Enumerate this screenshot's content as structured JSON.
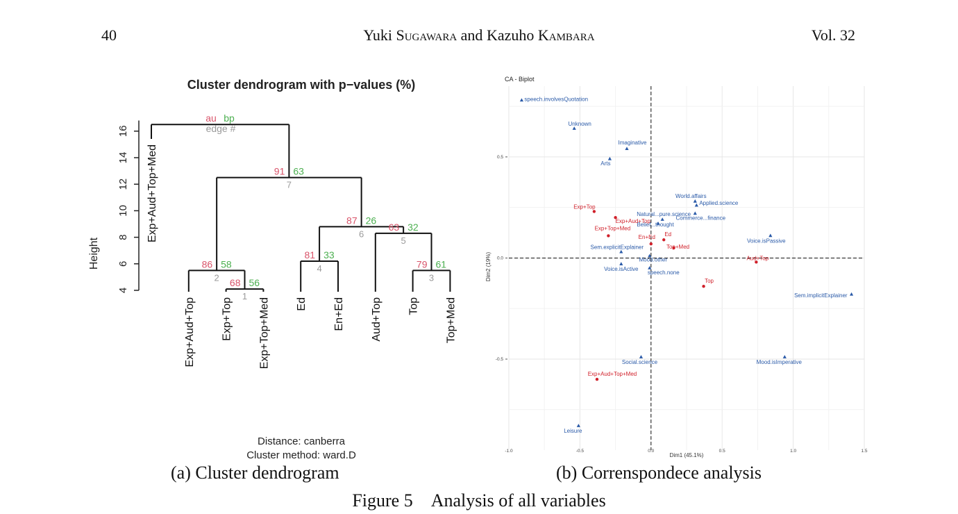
{
  "header": {
    "page_number": "40",
    "author_1_given": "Yuki",
    "author_1_family": "Sugawara",
    "connector": "and",
    "author_2_given": "Kazuho",
    "author_2_family": "Kambara",
    "volume": "Vol. 32"
  },
  "captions": {
    "sub_a": "(a) Cluster dendrogram",
    "sub_b": "(b) Correnspondece analysis",
    "figure": "Figure 5 Analysis of all variables"
  },
  "chart_data": [
    {
      "type": "dendrogram",
      "title": "Cluster dendrogram with p−values (%)",
      "ylabel": "Height",
      "ylim": [
        4,
        17
      ],
      "yticks": [
        "4",
        "6",
        "8",
        "10",
        "12",
        "14",
        "16"
      ],
      "legend": {
        "au": "au",
        "bp": "bp",
        "edge": "edge #"
      },
      "leaves": [
        "Exp+Aud+Top+Med",
        "Exp+Aud+Top",
        "Exp+Top",
        "Exp+Top+Med",
        "Ed",
        "En+Ed",
        "Aud+Top",
        "Top",
        "Top+Med"
      ],
      "merges": [
        {
          "id": "n1",
          "left": "Exp+Top",
          "right": "Exp+Top+Med",
          "height": 4.1,
          "au": "68",
          "bp": "56",
          "edge": "1"
        },
        {
          "id": "n2",
          "left": "Exp+Aud+Top",
          "right": "n1",
          "height": 5.5,
          "au": "86",
          "bp": "58",
          "edge": "2"
        },
        {
          "id": "n3",
          "left": "Top",
          "right": "Top+Med",
          "height": 5.5,
          "au": "79",
          "bp": "61",
          "edge": "3"
        },
        {
          "id": "n4",
          "left": "Ed",
          "right": "En+Ed",
          "height": 6.2,
          "au": "81",
          "bp": "33",
          "edge": "4"
        },
        {
          "id": "n5",
          "left": "Aud+Top",
          "right": "n3",
          "height": 8.3,
          "au": "63",
          "bp": "32",
          "edge": "5"
        },
        {
          "id": "n6",
          "left": "n4",
          "right": "n5",
          "height": 8.8,
          "au": "87",
          "bp": "26",
          "edge": "6"
        },
        {
          "id": "n7",
          "left": "n2",
          "right": "n6",
          "height": 12.5,
          "au": "91",
          "bp": "63",
          "edge": "7"
        },
        {
          "id": "root",
          "left": "Exp+Aud+Top+Med",
          "right": "n7",
          "height": 16.5,
          "au": "",
          "bp": "",
          "edge": ""
        }
      ],
      "footer": [
        "Distance:  canberra",
        "Cluster method: ward.D"
      ],
      "colors": {
        "au": "#d9546a",
        "bp": "#4caf50",
        "edge": "#9a9a9a",
        "line": "#111111"
      }
    },
    {
      "type": "scatter",
      "title": "CA - Biplot",
      "xlabel": "Dim1 (45.1%)",
      "ylabel": "Dim2 (19%)",
      "xlim": [
        -1.0,
        1.5
      ],
      "ylim": [
        -0.95,
        0.85
      ],
      "xticks": [
        "-1.0",
        "-0.5",
        "0.0",
        "0.5",
        "1.0",
        "1.5"
      ],
      "yticks": [
        "-0.5",
        "0.0",
        "0.5"
      ],
      "grid": true,
      "series": [
        {
          "marker": "triangle",
          "color": "#2a5aa8",
          "points": [
            {
              "label": "speech.involvesQuotation",
              "x": -0.91,
              "y": 0.78
            },
            {
              "label": "Unknown",
              "x": -0.54,
              "y": 0.64
            },
            {
              "label": "Imaginative",
              "x": -0.17,
              "y": 0.54
            },
            {
              "label": "Arts",
              "x": -0.29,
              "y": 0.49
            },
            {
              "label": "World.affairs",
              "x": 0.31,
              "y": 0.28
            },
            {
              "label": "Applied.science",
              "x": 0.32,
              "y": 0.26
            },
            {
              "label": "Natural...pure.science",
              "x": 0.08,
              "y": 0.19
            },
            {
              "label": "Belief...thought",
              "x": 0.05,
              "y": 0.17
            },
            {
              "label": "Commerce...finance",
              "x": 0.31,
              "y": 0.22
            },
            {
              "label": "Sem.explicitExplainer",
              "x": -0.21,
              "y": 0.03
            },
            {
              "label": "Voice.isPassive",
              "x": 0.84,
              "y": 0.11
            },
            {
              "label": "Mood.other",
              "x": -0.01,
              "y": 0.01
            },
            {
              "label": "Voice.isActive",
              "x": -0.21,
              "y": -0.03
            },
            {
              "label": "speech.none",
              "x": -0.01,
              "y": -0.05
            },
            {
              "label": "Sem.implicitExplainer",
              "x": 1.41,
              "y": -0.18
            },
            {
              "label": "Social.science",
              "x": -0.07,
              "y": -0.49
            },
            {
              "label": "Mood.isImperative",
              "x": 0.94,
              "y": -0.49
            },
            {
              "label": "Leisure",
              "x": -0.51,
              "y": -0.83
            }
          ]
        },
        {
          "marker": "circle",
          "color": "#d0202a",
          "points": [
            {
              "label": "Exp+Top",
              "x": -0.4,
              "y": 0.23
            },
            {
              "label": "Exp+Aud+Top",
              "x": -0.25,
              "y": 0.2
            },
            {
              "label": "Exp+Top+Med",
              "x": -0.3,
              "y": 0.11
            },
            {
              "label": "Ed",
              "x": 0.09,
              "y": 0.09
            },
            {
              "label": "En+Ed",
              "x": 0.0,
              "y": 0.07
            },
            {
              "label": "Top+Med",
              "x": 0.16,
              "y": 0.05
            },
            {
              "label": "Aud+Top",
              "x": 0.74,
              "y": -0.02
            },
            {
              "label": "Top",
              "x": 0.37,
              "y": -0.14
            },
            {
              "label": "Exp+Aud+Top+Med",
              "x": -0.38,
              "y": -0.6
            }
          ]
        }
      ]
    }
  ]
}
